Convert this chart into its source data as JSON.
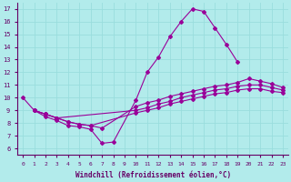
{
  "xlabel": "Windchill (Refroidissement éolien,°C)",
  "background_color": "#b2ebeb",
  "line_color": "#990099",
  "xlim": [
    -0.5,
    23.5
  ],
  "ylim": [
    5.5,
    17.5
  ],
  "xticks": [
    0,
    1,
    2,
    3,
    4,
    5,
    6,
    7,
    8,
    9,
    10,
    11,
    12,
    13,
    14,
    15,
    16,
    17,
    18,
    19,
    20,
    21,
    22,
    23
  ],
  "yticks": [
    6,
    7,
    8,
    9,
    10,
    11,
    12,
    13,
    14,
    15,
    16,
    17
  ],
  "grid_color": "#99dddd",
  "line1_x": [
    0,
    1,
    2,
    3,
    4,
    5,
    6,
    7,
    8,
    10,
    11,
    12,
    13,
    14,
    15,
    16,
    17,
    18,
    19
  ],
  "line1_y": [
    10.0,
    9.0,
    8.5,
    8.2,
    7.8,
    7.7,
    7.5,
    6.4,
    6.5,
    9.8,
    12.0,
    13.2,
    14.8,
    16.0,
    17.0,
    16.8,
    15.5,
    14.2,
    12.8
  ],
  "line2_x": [
    1,
    2,
    3,
    4,
    5,
    6,
    7,
    10,
    11,
    12,
    13,
    14,
    15,
    16,
    17,
    18,
    19,
    20,
    21,
    22,
    23
  ],
  "line2_y": [
    9.0,
    8.7,
    8.4,
    8.1,
    7.9,
    7.8,
    7.6,
    9.3,
    9.6,
    9.8,
    10.1,
    10.3,
    10.5,
    10.7,
    10.9,
    11.0,
    11.2,
    11.5,
    11.3,
    11.1,
    10.8
  ],
  "line3_x": [
    1,
    2,
    3,
    10,
    11,
    12,
    13,
    14,
    15,
    16,
    17,
    18,
    19,
    20,
    21,
    22,
    23
  ],
  "line3_y": [
    9.0,
    8.7,
    8.4,
    9.0,
    9.2,
    9.5,
    9.7,
    10.0,
    10.2,
    10.4,
    10.6,
    10.7,
    10.9,
    11.0,
    11.0,
    10.8,
    10.6
  ],
  "line4_x": [
    1,
    2,
    3,
    4,
    5,
    6,
    10,
    11,
    12,
    13,
    14,
    15,
    16,
    17,
    18,
    19,
    20,
    21,
    22,
    23
  ],
  "line4_y": [
    9.0,
    8.7,
    8.4,
    8.1,
    7.9,
    7.8,
    8.8,
    9.0,
    9.2,
    9.5,
    9.7,
    9.9,
    10.1,
    10.3,
    10.4,
    10.6,
    10.7,
    10.7,
    10.5,
    10.4
  ]
}
